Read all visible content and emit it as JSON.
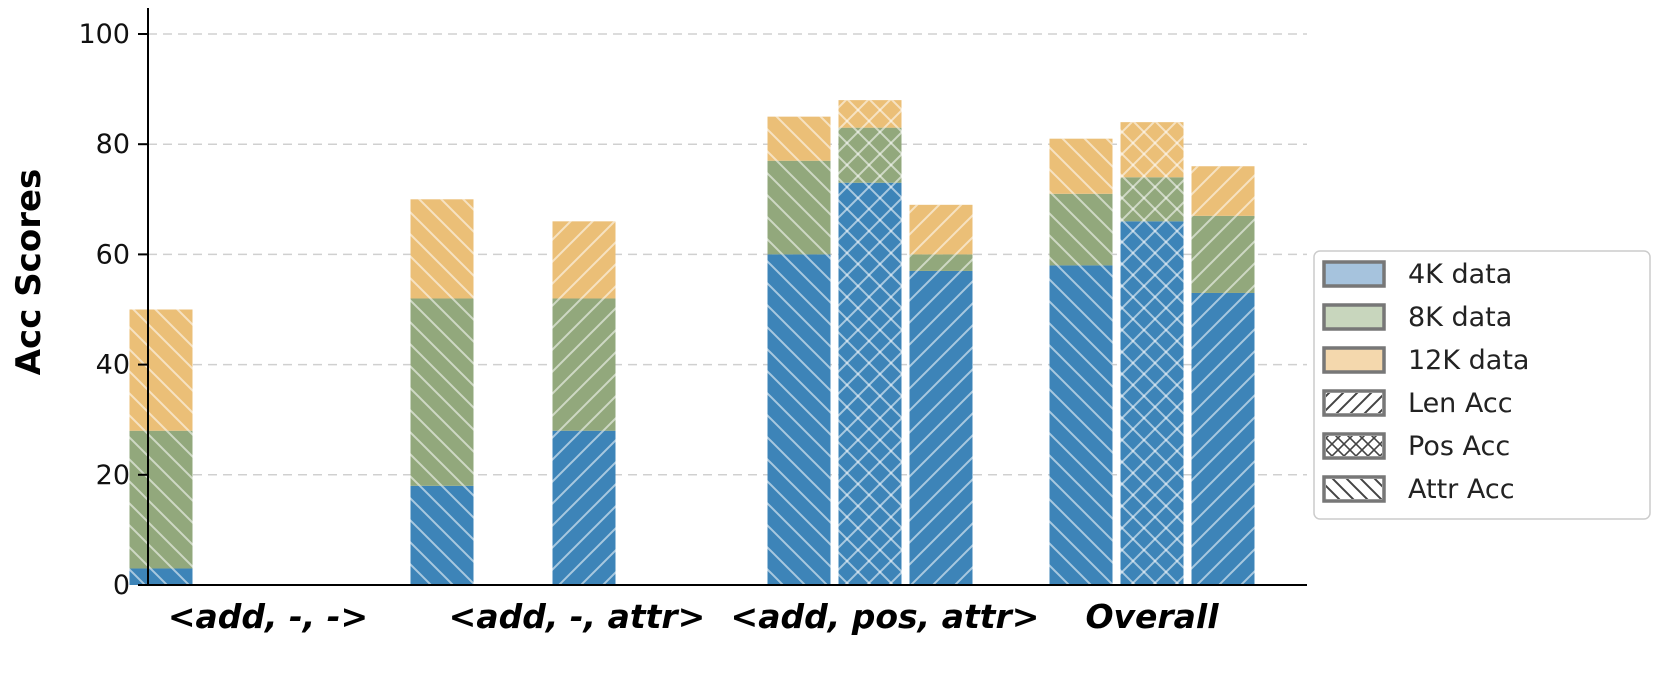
{
  "chart_data": {
    "type": "bar",
    "stacked": true,
    "ylabel": "Acc Scores",
    "xlabel": "",
    "ylim": [
      0,
      105
    ],
    "yticks": [
      0,
      20,
      40,
      60,
      80,
      100
    ],
    "grid": "horizontal dashed",
    "legend_position": "right",
    "categories": [
      "<add, -, ->",
      "<add, -, attr>",
      "<add, pos, attr>",
      "Overall"
    ],
    "metrics": [
      "Len Acc",
      "Pos Acc",
      "Attr Acc"
    ],
    "data_sizes": [
      "4K data",
      "8K data",
      "12K data"
    ],
    "colors": {
      "4K data": "#3d84b8",
      "8K data": "#92a87c",
      "12K data": "#ebbf77",
      "legend_4K": "#a6c3dd",
      "legend_8K": "#c8d6bd",
      "legend_12K": "#f4d8ad"
    },
    "bars": [
      {
        "category": "<add, -, ->",
        "metric": "Len Acc",
        "hatch": "backslash",
        "values": {
          "4K data": 3,
          "8K data": 28,
          "12K data": 50
        }
      },
      {
        "category": "<add, -, attr>",
        "metric": "Len Acc",
        "hatch": "backslash",
        "values": {
          "4K data": 18,
          "8K data": 52,
          "12K data": 70
        }
      },
      {
        "category": "<add, -, attr>",
        "metric": "Attr Acc",
        "hatch": "slash",
        "values": {
          "4K data": 28,
          "8K data": 52,
          "12K data": 66
        }
      },
      {
        "category": "<add, pos, attr>",
        "metric": "Len Acc",
        "hatch": "backslash",
        "values": {
          "4K data": 60,
          "8K data": 77,
          "12K data": 85
        }
      },
      {
        "category": "<add, pos, attr>",
        "metric": "Pos Acc",
        "hatch": "cross",
        "values": {
          "4K data": 73,
          "8K data": 83,
          "12K data": 88
        }
      },
      {
        "category": "<add, pos, attr>",
        "metric": "Attr Acc",
        "hatch": "slash",
        "values": {
          "4K data": 57,
          "8K data": 60,
          "12K data": 69
        }
      },
      {
        "category": "Overall",
        "metric": "Len Acc",
        "hatch": "backslash",
        "values": {
          "4K data": 58,
          "8K data": 71,
          "12K data": 81
        }
      },
      {
        "category": "Overall",
        "metric": "Pos Acc",
        "hatch": "cross",
        "values": {
          "4K data": 66,
          "8K data": 74,
          "12K data": 84
        }
      },
      {
        "category": "Overall",
        "metric": "Attr Acc",
        "hatch": "slash",
        "values": {
          "4K data": 53,
          "8K data": 67,
          "12K data": 76
        }
      }
    ],
    "legend": [
      {
        "label": "4K data",
        "kind": "color",
        "color": "#a6c3dd"
      },
      {
        "label": "8K data",
        "kind": "color",
        "color": "#c8d6bd"
      },
      {
        "label": "12K data",
        "kind": "color",
        "color": "#f4d8ad"
      },
      {
        "label": "Len Acc",
        "kind": "hatch",
        "hatch": "backslash"
      },
      {
        "label": "Pos Acc",
        "kind": "hatch",
        "hatch": "cross"
      },
      {
        "label": "Attr Acc",
        "kind": "hatch",
        "hatch": "slash"
      }
    ]
  }
}
